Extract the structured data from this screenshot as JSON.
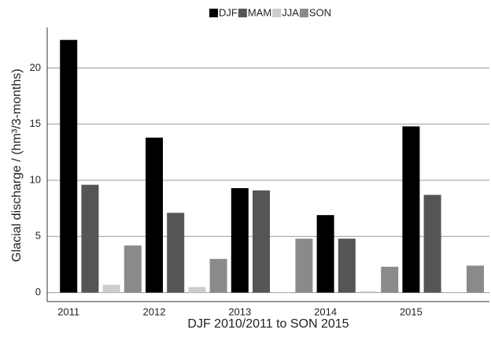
{
  "chart_data": {
    "type": "bar",
    "x_label": "DJF 2010/2011 to SON 2015",
    "y_label": "Glacial discharge / (hm³/3-months)",
    "categories": [
      "2011",
      null,
      null,
      null,
      "2012",
      null,
      null,
      null,
      "2013",
      null,
      null,
      null,
      "2014",
      null,
      null,
      null,
      "2015",
      null,
      null,
      null
    ],
    "series": [
      {
        "name": "DJF",
        "color": "#000000",
        "values": [
          22.5,
          null,
          null,
          null,
          13.8,
          null,
          null,
          null,
          9.3,
          null,
          null,
          null,
          6.9,
          null,
          null,
          null,
          14.8,
          null,
          null,
          null
        ]
      },
      {
        "name": "MAM",
        "color": "#555555",
        "values": [
          null,
          9.6,
          null,
          null,
          null,
          7.1,
          null,
          null,
          null,
          9.1,
          null,
          null,
          null,
          4.8,
          null,
          null,
          null,
          8.7,
          null,
          null
        ]
      },
      {
        "name": "JJA",
        "color": "#cccccc",
        "values": [
          null,
          null,
          0.7,
          null,
          null,
          null,
          0.5,
          null,
          null,
          null,
          0.05,
          null,
          null,
          null,
          0.1,
          null,
          null,
          null,
          0.05,
          null
        ]
      },
      {
        "name": "SON",
        "color": "#8a8a8a",
        "values": [
          null,
          null,
          null,
          4.2,
          null,
          null,
          null,
          3.0,
          null,
          null,
          null,
          4.8,
          null,
          null,
          null,
          2.3,
          null,
          null,
          null,
          2.4
        ]
      }
    ],
    "ylim": [
      -0.8,
      23.6
    ],
    "yticks": [
      0,
      5,
      10,
      15,
      20
    ],
    "grid": true,
    "legend": "top"
  }
}
